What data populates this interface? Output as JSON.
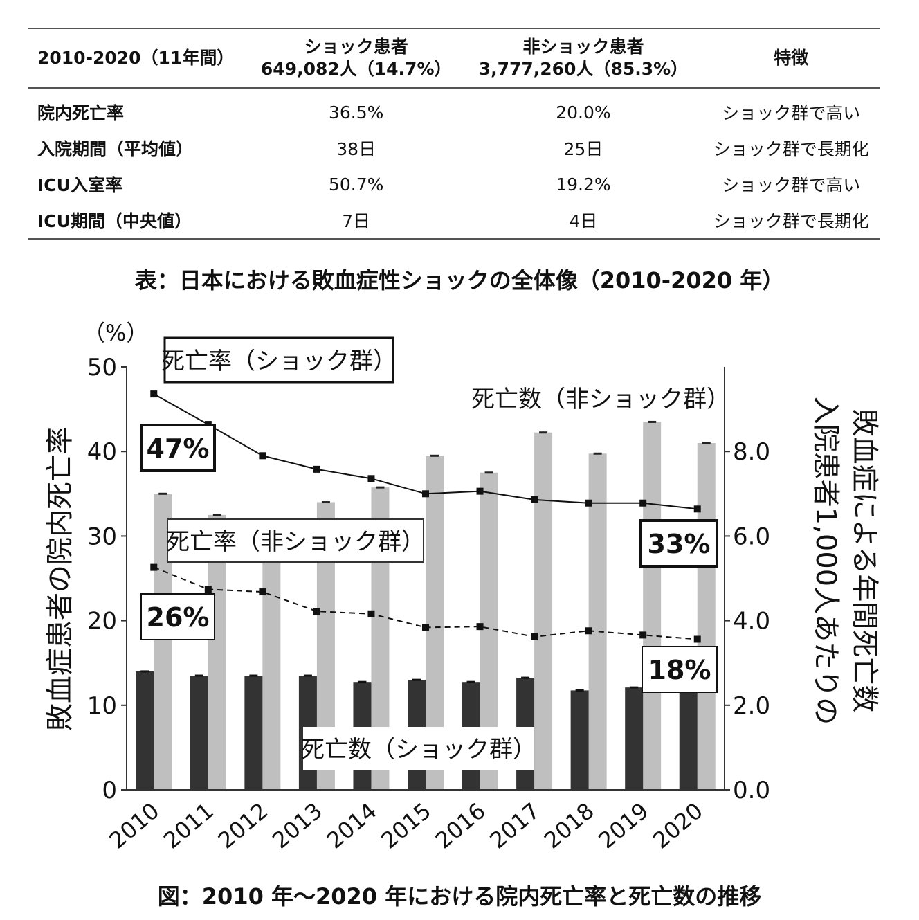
{
  "table": {
    "header": {
      "period": "2010-2020（11年間）",
      "shock_line1": "ショック患者",
      "shock_line2": "649,082人（14.7%）",
      "nonshock_line1": "非ショック患者",
      "nonshock_line2": "3,777,260人（85.3%）",
      "feature": "特徴"
    },
    "rows": [
      {
        "label": "院内死亡率",
        "shock": "36.5%",
        "nonshock": "20.0%",
        "feature": "ショック群で高い"
      },
      {
        "label": "入院期間（平均値）",
        "shock": "38日",
        "nonshock": "25日",
        "feature": "ショック群で長期化"
      },
      {
        "label": "ICU入室率",
        "shock": "50.7%",
        "nonshock": "19.2%",
        "feature": "ショック群で高い"
      },
      {
        "label": "ICU期間（中央値）",
        "shock": "7日",
        "nonshock": "4日",
        "feature": "ショック群で長期化"
      }
    ],
    "caption": "表：日本における敗血症性ショックの全体像（2010-2020 年）"
  },
  "figure_caption": "図：2010 年～2020 年における院内死亡率と死亡数の推移",
  "chart_data": {
    "type": "bar",
    "categories": [
      "2010",
      "2011",
      "2012",
      "2013",
      "2014",
      "2015",
      "2016",
      "2017",
      "2018",
      "2019",
      "2020"
    ],
    "unit_label": "（%）",
    "ylabel": "敗血症患者の院内死亡率",
    "y2label_line1": "入院患者1,000人あたりの",
    "y2label_line2": "敗血症による年間死亡数",
    "ylim": [
      0,
      50
    ],
    "y2lim": [
      0,
      10
    ],
    "yticks": [
      "0",
      "10",
      "20",
      "30",
      "40",
      "50"
    ],
    "y2ticks": [
      "0.0",
      "2.0",
      "4.0",
      "6.0",
      "8.0"
    ],
    "series": [
      {
        "name": "死亡数（ショック群）",
        "kind": "bar",
        "axis": "right",
        "color": "#333333",
        "values": [
          2.8,
          2.7,
          2.7,
          2.7,
          2.55,
          2.6,
          2.55,
          2.65,
          2.35,
          2.42,
          2.4
        ]
      },
      {
        "name": "死亡数（非ショック群）",
        "kind": "bar",
        "axis": "right",
        "color": "#bfbfbf",
        "values": [
          7.0,
          6.5,
          6.2,
          6.8,
          7.15,
          7.9,
          7.5,
          8.45,
          7.95,
          8.7,
          8.2
        ]
      },
      {
        "name": "死亡率（ショック群）",
        "kind": "line",
        "axis": "left",
        "dash": "solid",
        "values": [
          46.8,
          43.2,
          39.5,
          37.9,
          36.8,
          35.0,
          35.3,
          34.3,
          33.9,
          33.9,
          33.2
        ]
      },
      {
        "name": "死亡率（非ショック群）",
        "kind": "line",
        "axis": "left",
        "dash": "dashed",
        "values": [
          26.3,
          23.7,
          23.4,
          21.1,
          20.8,
          19.2,
          19.3,
          18.1,
          18.8,
          18.3,
          17.8
        ]
      }
    ],
    "annotations": [
      "47%",
      "26%",
      "33%",
      "18%"
    ]
  }
}
